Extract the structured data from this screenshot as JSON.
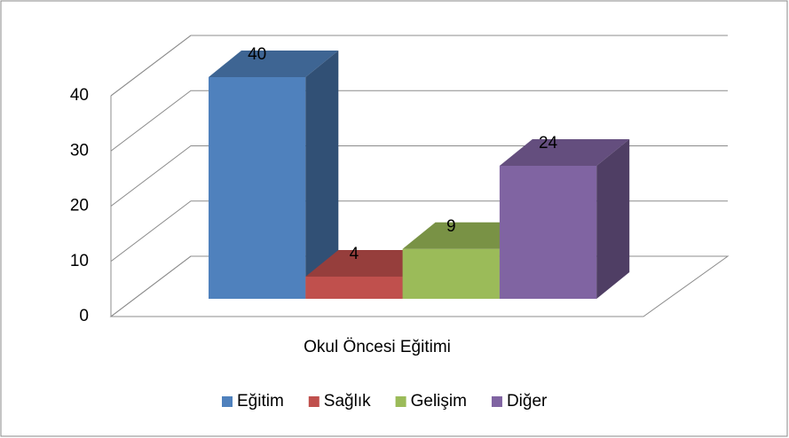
{
  "chart_data": {
    "type": "bar3d",
    "categories": [
      "Okul Öncesi  Eğitimi"
    ],
    "series": [
      {
        "name": "Eğitim",
        "color": "#4f81bd",
        "values": [
          40
        ]
      },
      {
        "name": "Sağlık",
        "color": "#c0504d",
        "values": [
          4
        ]
      },
      {
        "name": "Gelişim",
        "color": "#9bbb59",
        "values": [
          9
        ]
      },
      {
        "name": "Diğer",
        "color": "#8064a2",
        "values": [
          24
        ]
      }
    ],
    "ylim": [
      0,
      40
    ],
    "yticks": [
      0,
      10,
      20,
      30,
      40
    ],
    "grid": true,
    "legend": "bottom"
  }
}
